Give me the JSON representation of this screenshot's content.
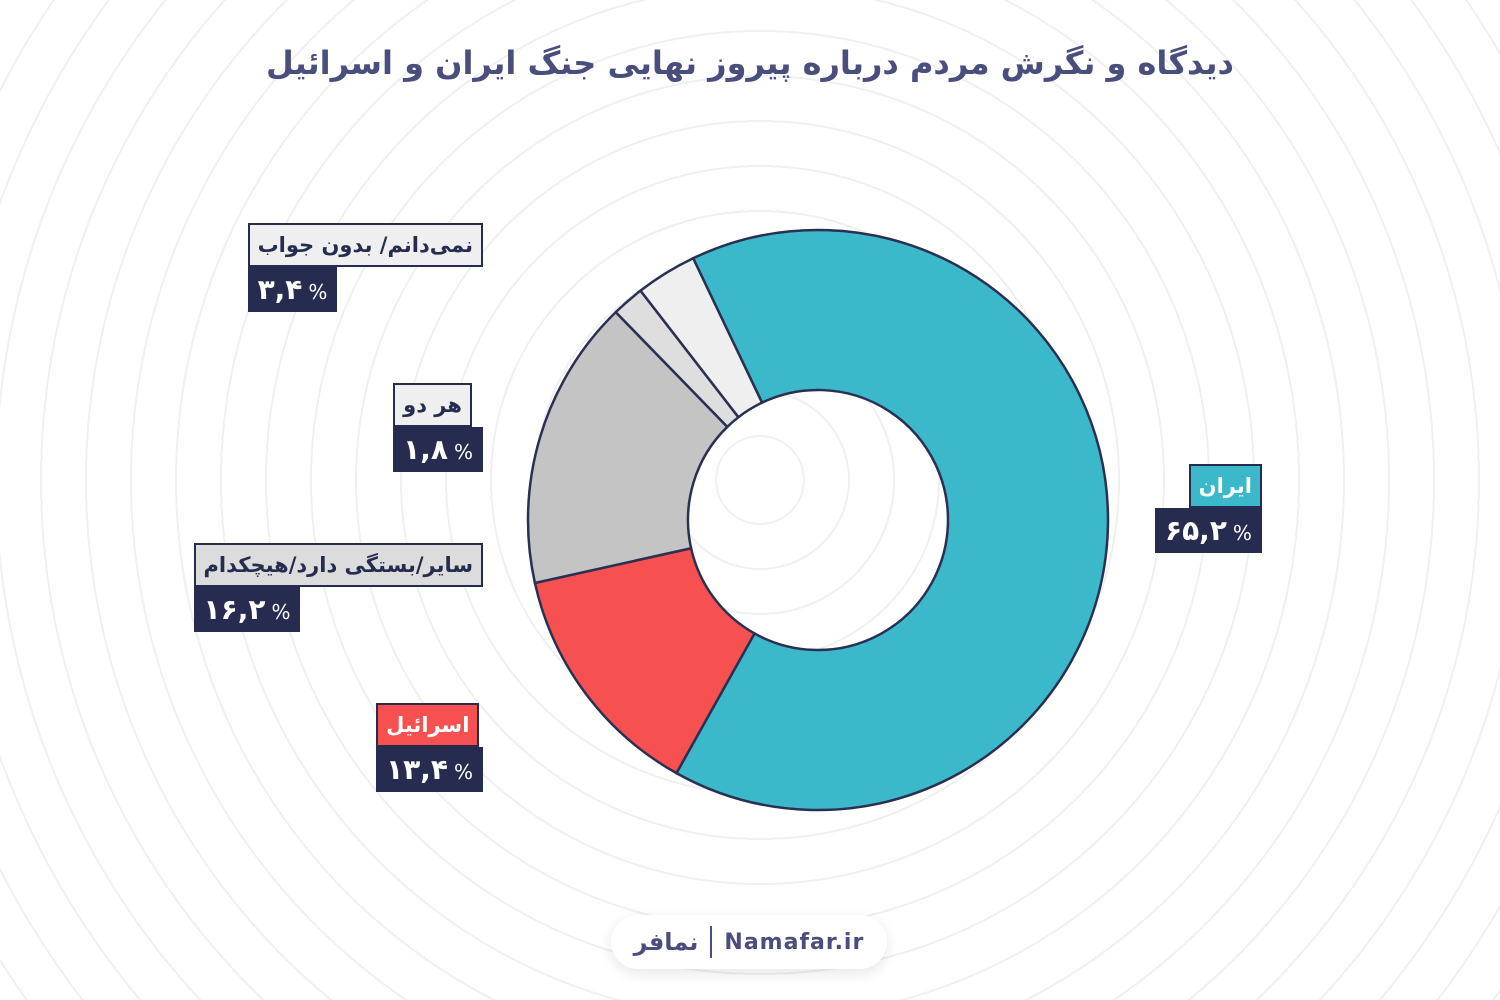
{
  "title": "دیدگاه و نگرش مردم درباره پیروز نهایی جنگ ایران و اسرائیل",
  "chart_data": {
    "type": "pie",
    "donut": true,
    "title": "دیدگاه و نگرش مردم درباره پیروز نهایی جنگ ایران و اسرائیل",
    "categories": [
      "ایران",
      "اسرائیل",
      "سایر/بستگی دارد/هیچکدام",
      "هر دو",
      "نمی‌دانم/ بدون جواب"
    ],
    "values": [
      65.2,
      13.4,
      16.2,
      1.8,
      3.4
    ],
    "value_labels": [
      "۶۵,۲",
      "۱۳,۴",
      "۱۶,۲",
      "۱,۸",
      "۳,۴"
    ],
    "percent_sign": "%",
    "colors": [
      "#3bb8c9",
      "#f75050",
      "#c4c4c4",
      "#dedede",
      "#efefef"
    ],
    "stroke_color": "#2a3052",
    "label_box_color": "#262c4f"
  },
  "footer": {
    "logo_fa": "نمافر",
    "site": "Namafar.ir"
  }
}
